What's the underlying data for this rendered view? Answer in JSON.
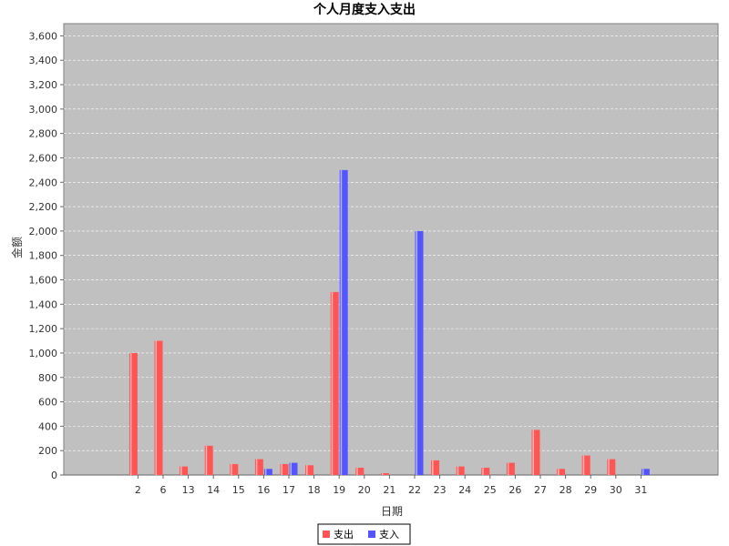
{
  "chart_data": {
    "type": "bar",
    "title": "个人月度支入支出",
    "xlabel": "日期",
    "ylabel": "金额",
    "ylim": [
      0,
      3700
    ],
    "yticks": [
      0,
      200,
      400,
      600,
      800,
      1000,
      1200,
      1400,
      1600,
      1800,
      2000,
      2200,
      2400,
      2600,
      2800,
      3000,
      3200,
      3400,
      3600
    ],
    "ytick_labels": [
      "0",
      "200",
      "400",
      "600",
      "800",
      "1,000",
      "1,200",
      "1,400",
      "1,600",
      "1,800",
      "2,000",
      "2,200",
      "2,400",
      "2,600",
      "2,800",
      "3,000",
      "3,200",
      "3,400",
      "3,600"
    ],
    "categories": [
      "2",
      "6",
      "13",
      "14",
      "15",
      "16",
      "17",
      "18",
      "19",
      "20",
      "21",
      "22",
      "23",
      "24",
      "25",
      "26",
      "27",
      "28",
      "29",
      "30",
      "31"
    ],
    "series": [
      {
        "name": "支出",
        "color": "#ff5555",
        "values": [
          1000,
          1100,
          70,
          240,
          90,
          130,
          90,
          80,
          1500,
          60,
          15,
          0,
          120,
          70,
          60,
          100,
          370,
          50,
          160,
          130,
          0
        ]
      },
      {
        "name": "支入",
        "color": "#5555ff",
        "values": [
          0,
          0,
          0,
          0,
          0,
          50,
          100,
          0,
          2500,
          0,
          0,
          2000,
          0,
          0,
          0,
          0,
          0,
          0,
          0,
          0,
          50
        ]
      }
    ],
    "grid": true,
    "legend_position": "bottom-center",
    "plot_background": "#c0c0c0"
  }
}
